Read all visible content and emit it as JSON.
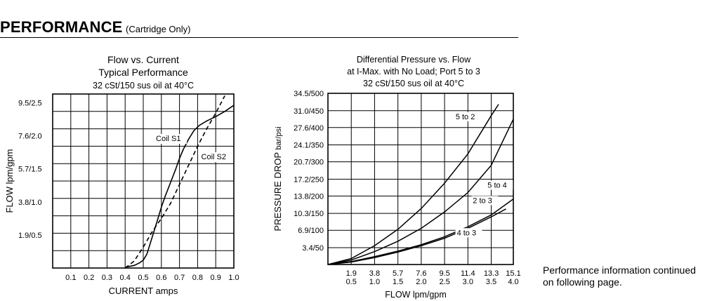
{
  "header": {
    "title": "PERFORMANCE",
    "subtitle": "(Cartridge Only)"
  },
  "note": {
    "line1": "Performance information continued",
    "line2": "on following page."
  },
  "chart_data": [
    {
      "type": "line",
      "title_lines": [
        "Flow vs. Current",
        "Typical Performance",
        "32 cSt/150 sus oil at 40°C"
      ],
      "xlabel": "CURRENT amps",
      "ylabel": "FLOW lpm/gpm",
      "xlim": [
        0,
        1.0
      ],
      "ylim": [
        0,
        10
      ],
      "x_ticks": [
        "0.1",
        "0.2",
        "0.3",
        "0.4",
        "0.5",
        "0.6",
        "0.7",
        "0.8",
        "0.9",
        "1.0"
      ],
      "y_ticks": [
        {
          "v": 1.9,
          "label": "1.9/0.5"
        },
        {
          "v": 3.8,
          "label": "3.8/1.0"
        },
        {
          "v": 5.7,
          "label": "5.7/1.5"
        },
        {
          "v": 7.6,
          "label": "7.6/2.0"
        },
        {
          "v": 9.5,
          "label": "9.5/2.5"
        }
      ],
      "grid": true,
      "series": [
        {
          "name": "Coil S1",
          "style": "solid",
          "label_at": {
            "x": 0.57,
            "y": 7.3
          },
          "points": [
            [
              0.4,
              0.05
            ],
            [
              0.45,
              0.15
            ],
            [
              0.48,
              0.3
            ],
            [
              0.5,
              0.45
            ],
            [
              0.52,
              0.8
            ],
            [
              0.55,
              1.8
            ],
            [
              0.58,
              2.8
            ],
            [
              0.6,
              3.5
            ],
            [
              0.62,
              4.1
            ],
            [
              0.65,
              4.9
            ],
            [
              0.68,
              5.7
            ],
            [
              0.7,
              6.3
            ],
            [
              0.72,
              6.8
            ],
            [
              0.75,
              7.4
            ],
            [
              0.78,
              7.9
            ],
            [
              0.81,
              8.2
            ],
            [
              0.85,
              8.45
            ],
            [
              0.9,
              8.7
            ],
            [
              0.95,
              9.0
            ],
            [
              1.0,
              9.35
            ]
          ]
        },
        {
          "name": "Coil S2",
          "style": "dashed",
          "label_at": {
            "x": 0.82,
            "y": 6.25
          },
          "points": [
            [
              0.4,
              0.0
            ],
            [
              0.45,
              0.4
            ],
            [
              0.5,
              1.2
            ],
            [
              0.55,
              2.1
            ],
            [
              0.6,
              2.85
            ],
            [
              0.65,
              3.7
            ],
            [
              0.7,
              4.8
            ],
            [
              0.75,
              5.9
            ],
            [
              0.8,
              7.0
            ],
            [
              0.85,
              8.0
            ],
            [
              0.9,
              8.9
            ],
            [
              0.95,
              9.9
            ]
          ]
        }
      ]
    },
    {
      "type": "line",
      "title_lines": [
        "Differential Pressure vs. Flow",
        "at I-Max. with No Load; Port 5 to 3",
        "32 cSt/150 sus oil at 40°C"
      ],
      "xlabel": "FLOW lpm/gpm",
      "ylabel_main": "PRESSURE DROP",
      "ylabel_unit": "bar/psi",
      "xlim": [
        0,
        15.1
      ],
      "ylim": [
        0,
        34.5
      ],
      "x_ticks": [
        {
          "v": 1.9,
          "top": "1.9",
          "bottom": "0.5"
        },
        {
          "v": 3.8,
          "top": "3.8",
          "bottom": "1.0"
        },
        {
          "v": 5.7,
          "top": "5.7",
          "bottom": "1.5"
        },
        {
          "v": 7.6,
          "top": "7.6",
          "bottom": "2.0"
        },
        {
          "v": 9.5,
          "top": "9.5",
          "bottom": "2.5"
        },
        {
          "v": 11.4,
          "top": "11.4",
          "bottom": "3.0"
        },
        {
          "v": 13.3,
          "top": "13.3",
          "bottom": "3.5"
        },
        {
          "v": 15.1,
          "top": "15.1",
          "bottom": "4.0"
        }
      ],
      "y_ticks": [
        {
          "v": 3.4,
          "label": "3.4/50"
        },
        {
          "v": 6.9,
          "label": "6.9/100"
        },
        {
          "v": 10.3,
          "label": "10.3/150"
        },
        {
          "v": 13.8,
          "label": "13.8/200"
        },
        {
          "v": 17.2,
          "label": "17.2/250"
        },
        {
          "v": 20.7,
          "label": "20.7/300"
        },
        {
          "v": 24.1,
          "label": "24.1/350"
        },
        {
          "v": 27.6,
          "label": "27.6/400"
        },
        {
          "v": 31.0,
          "label": "31.0/450"
        },
        {
          "v": 34.5,
          "label": "34.5/500"
        }
      ],
      "grid": true,
      "series": [
        {
          "name": "5 to 2",
          "label_at": {
            "x": 10.4,
            "y": 29.3
          },
          "points": [
            [
              0,
              0
            ],
            [
              1.9,
              1.2
            ],
            [
              3.8,
              3.8
            ],
            [
              5.7,
              7.1
            ],
            [
              7.6,
              11.3
            ],
            [
              9.5,
              16.4
            ],
            [
              11.4,
              22.3
            ],
            [
              13.3,
              30.0
            ],
            [
              13.9,
              32.3
            ]
          ]
        },
        {
          "name": "5 to 4",
          "label_at": {
            "x": 13.0,
            "y": 15.5
          },
          "points": [
            [
              0,
              0
            ],
            [
              1.9,
              0.9
            ],
            [
              3.8,
              2.6
            ],
            [
              5.7,
              4.7
            ],
            [
              7.6,
              7.3
            ],
            [
              9.5,
              10.6
            ],
            [
              11.4,
              14.5
            ],
            [
              13.3,
              20.0
            ],
            [
              15.1,
              29.3
            ]
          ]
        },
        {
          "name": "2 to 3",
          "label_at": {
            "x": 11.8,
            "y": 12.4
          },
          "points": [
            [
              0,
              0
            ],
            [
              1.9,
              0.6
            ],
            [
              3.8,
              1.6
            ],
            [
              5.7,
              2.7
            ],
            [
              7.6,
              4.0
            ],
            [
              9.5,
              5.6
            ],
            [
              11.4,
              7.6
            ],
            [
              13.3,
              10.0
            ],
            [
              15.1,
              13.2
            ]
          ]
        },
        {
          "name": "4 to 3",
          "label_at": {
            "x": 10.5,
            "y": 5.9
          },
          "points": [
            [
              0,
              0
            ],
            [
              1.9,
              0.5
            ],
            [
              3.8,
              1.4
            ],
            [
              5.7,
              2.5
            ],
            [
              7.6,
              3.8
            ],
            [
              9.5,
              5.3
            ],
            [
              11.4,
              7.3
            ],
            [
              13.3,
              9.6
            ],
            [
              14.5,
              11.2
            ]
          ]
        }
      ]
    }
  ]
}
